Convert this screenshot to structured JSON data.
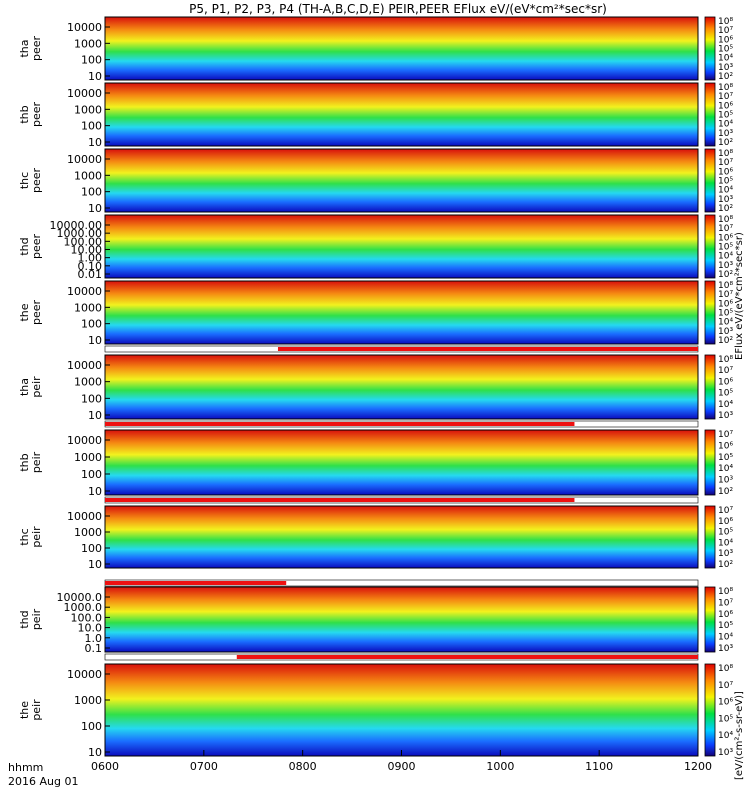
{
  "title": "P5, P1, P2, P3, P4 (TH-A,B,C,D,E) PEIR,PEER EFlux eV/(eV*cm²*sec*sr)",
  "colorbar_units": "[eV/(cm²-s-sr-eV)]",
  "colorbar_rotated_text": "EFlux eV/(eV*cm²*sec*sr)",
  "time_axis": {
    "label_top": "hhmm",
    "label_bottom": "2016 Aug 01",
    "ticks": [
      "0600",
      "0700",
      "0800",
      "0900",
      "1000",
      "1100",
      "1200"
    ]
  },
  "colors": {
    "status_red": "#ee1111",
    "status_bg": "#ffffff",
    "frame": "#000000"
  },
  "chart_data": [
    {
      "type": "heatmap",
      "probe": "tha",
      "instrument": "peer",
      "ylabel": [
        "tha",
        "peer"
      ],
      "yscale": "log",
      "yticks": [
        "10000",
        "1000",
        "100",
        "10"
      ],
      "colorbar_ticks": [
        "10⁸",
        "10⁷",
        "10⁶",
        "10⁵",
        "10⁴",
        "10³",
        "10²"
      ],
      "status_bar": null
    },
    {
      "type": "heatmap",
      "probe": "thb",
      "instrument": "peer",
      "ylabel": [
        "thb",
        "peer"
      ],
      "yscale": "log",
      "yticks": [
        "10000",
        "1000",
        "100",
        "10"
      ],
      "colorbar_ticks": [
        "10⁸",
        "10⁷",
        "10⁶",
        "10⁵",
        "10⁴",
        "10³",
        "10²"
      ],
      "status_bar": null
    },
    {
      "type": "heatmap",
      "probe": "thc",
      "instrument": "peer",
      "ylabel": [
        "thc",
        "peer"
      ],
      "yscale": "log",
      "yticks": [
        "10000",
        "1000",
        "100",
        "10"
      ],
      "colorbar_ticks": [
        "10⁸",
        "10⁷",
        "10⁶",
        "10⁵",
        "10⁴",
        "10³",
        "10²"
      ],
      "status_bar": null
    },
    {
      "type": "heatmap",
      "probe": "thd",
      "instrument": "peer",
      "ylabel": [
        "thd",
        "peer"
      ],
      "yscale": "log",
      "yticks": [
        "10000.00",
        "1000.00",
        "100.00",
        "10.00",
        "1.00",
        "0.10",
        "0.01"
      ],
      "colorbar_ticks": [
        "10⁸",
        "10⁷",
        "10⁶",
        "10⁵",
        "10⁴",
        "10³",
        "10²"
      ],
      "status_bar": null
    },
    {
      "type": "heatmap",
      "probe": "the",
      "instrument": "peer",
      "ylabel": [
        "the",
        "peer"
      ],
      "yscale": "log",
      "yticks": [
        "10000",
        "1000",
        "100",
        "10"
      ],
      "colorbar_ticks": [
        "10⁸",
        "10⁷",
        "10⁶",
        "10⁵",
        "10⁴",
        "10³",
        "10²"
      ],
      "status_bar": {
        "red_from_hhmm": "0745",
        "red_to_hhmm": "1200"
      }
    },
    {
      "type": "heatmap",
      "probe": "tha",
      "instrument": "peir",
      "ylabel": [
        "tha",
        "peir"
      ],
      "yscale": "log",
      "yticks": [
        "10000",
        "1000",
        "100",
        "10"
      ],
      "colorbar_ticks": [
        "10⁸",
        "10⁷",
        "10⁶",
        "10⁵",
        "10⁴",
        "10³"
      ],
      "status_bar": {
        "red_from_hhmm": "0600",
        "red_to_hhmm": "1045"
      }
    },
    {
      "type": "heatmap",
      "probe": "thb",
      "instrument": "peir",
      "ylabel": [
        "thb",
        "peir"
      ],
      "yscale": "log",
      "yticks": [
        "10000",
        "1000",
        "100",
        "10"
      ],
      "colorbar_ticks": [
        "10⁷",
        "10⁶",
        "10⁵",
        "10⁴",
        "10³",
        "10²"
      ],
      "status_bar": {
        "red_from_hhmm": "0600",
        "red_to_hhmm": "1045"
      }
    },
    {
      "type": "heatmap",
      "probe": "thc",
      "instrument": "peir",
      "ylabel": [
        "thc",
        "peir"
      ],
      "yscale": "log",
      "yticks": [
        "10000",
        "1000",
        "100",
        "10"
      ],
      "colorbar_ticks": [
        "10⁷",
        "10⁶",
        "10⁵",
        "10⁴",
        "10³",
        "10²"
      ],
      "status_bar": {
        "red_from_hhmm": "0600",
        "red_to_hhmm": "0750"
      }
    },
    {
      "type": "heatmap",
      "probe": "thd",
      "instrument": "peir",
      "ylabel": [
        "thd",
        "peir"
      ],
      "yscale": "log",
      "yticks": [
        "10000.0",
        "1000.0",
        "100.0",
        "10.0",
        "1.0",
        "0.1"
      ],
      "colorbar_ticks": [
        "10⁸",
        "10⁷",
        "10⁶",
        "10⁵",
        "10⁴",
        "10³"
      ],
      "status_bar": {
        "red_from_hhmm": "0720",
        "red_to_hhmm": "1200"
      }
    },
    {
      "type": "heatmap",
      "probe": "the",
      "instrument": "peir",
      "ylabel": [
        "the",
        "peir"
      ],
      "yscale": "log",
      "yticks": [
        "10000",
        "1000",
        "100",
        "10"
      ],
      "colorbar_ticks": [
        "10⁸",
        "10⁷",
        "10⁶",
        "10⁵",
        "10⁴",
        "10³"
      ],
      "status_bar": null
    }
  ]
}
